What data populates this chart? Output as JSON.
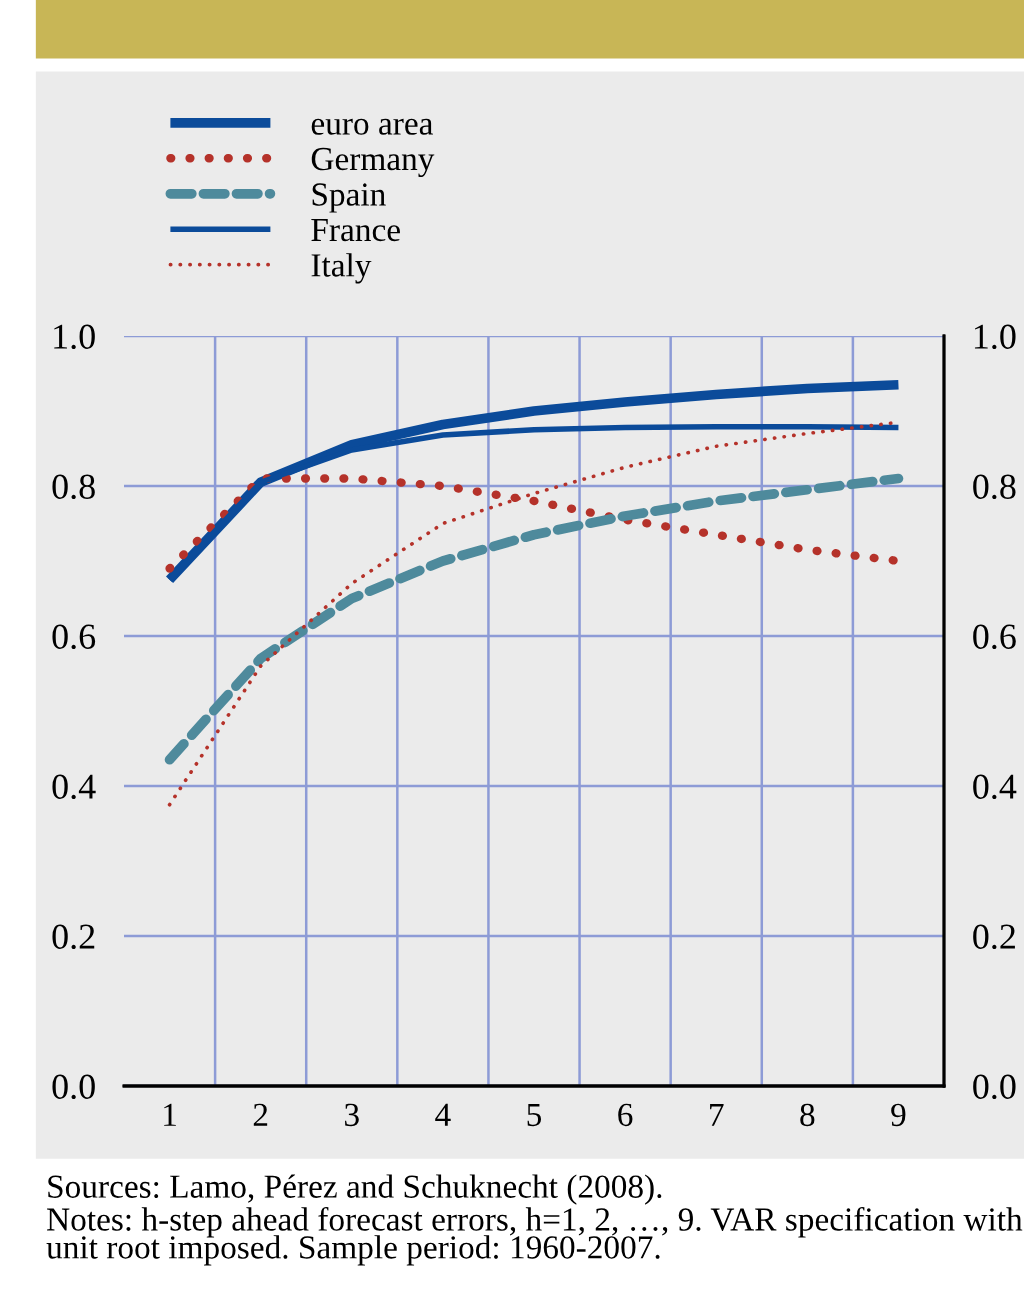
{
  "chart_data": {
    "type": "line",
    "categories": [
      "1",
      "2",
      "3",
      "4",
      "5",
      "6",
      "7",
      "8",
      "9"
    ],
    "series": [
      {
        "name": "euro area",
        "color": "#0b4b9a",
        "line_style": "solid",
        "values": [
          0.675,
          0.805,
          0.855,
          0.882,
          0.9,
          0.912,
          0.922,
          0.93,
          0.935
        ]
      },
      {
        "name": "Germany",
        "color": "#b5322a",
        "line_style": "dotted",
        "values": [
          0.69,
          0.81,
          0.81,
          0.8,
          0.78,
          0.755,
          0.735,
          0.715,
          0.7
        ]
      },
      {
        "name": "Spain",
        "color": "#4e8a9c",
        "line_style": "dashed",
        "values": [
          0.435,
          0.57,
          0.65,
          0.7,
          0.735,
          0.76,
          0.78,
          0.795,
          0.81
        ]
      },
      {
        "name": "France",
        "color": "#0b4b9a",
        "line_style": "solid",
        "values": [
          0.675,
          0.805,
          0.848,
          0.868,
          0.875,
          0.878,
          0.879,
          0.879,
          0.878
        ]
      },
      {
        "name": "Italy",
        "color": "#b5322a",
        "line_style": "dotted",
        "values": [
          0.375,
          0.56,
          0.67,
          0.75,
          0.79,
          0.825,
          0.853,
          0.87,
          0.885
        ]
      }
    ],
    "ylim": [
      0,
      1
    ],
    "yticks": [
      {
        "value": 0,
        "label": "0.0"
      },
      0.2,
      0.4,
      0.6,
      0.8,
      {
        "value": 1,
        "label": "1.0"
      }
    ],
    "y2lim": [
      0,
      1
    ],
    "y2ticks": [
      {
        "value": 0,
        "label": "0.0"
      },
      0.2,
      0.4,
      0.6,
      0.8,
      {
        "value": 1,
        "label": "1.0"
      }
    ],
    "grid": true,
    "legend": "top left",
    "annotations": [
      "Sources: Lamo, Pérez and Schuknecht (2008).",
      "Notes: h-step ahead forecast errors, h=1, 2, …, 9. VAR specification with unit root imposed. Sample period: 1960-2007."
    ]
  }
}
